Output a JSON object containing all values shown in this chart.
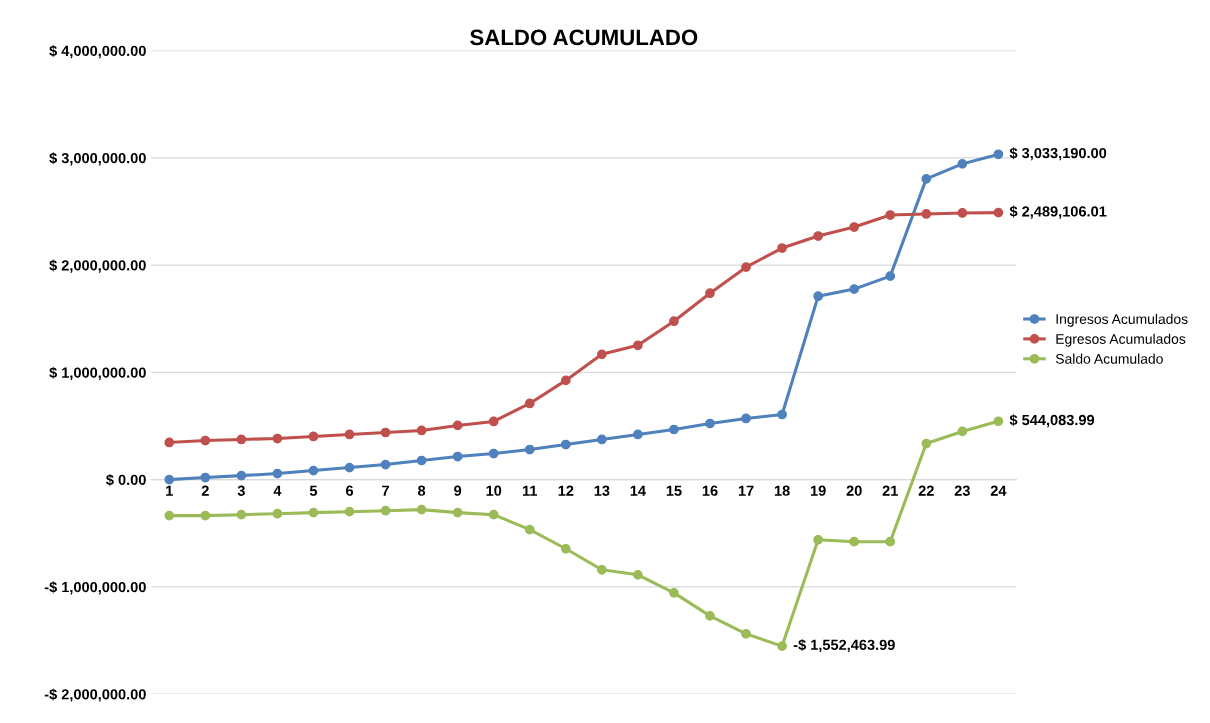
{
  "chart_data": {
    "type": "line",
    "title": "SALDO ACUMULADO",
    "categories": [
      "1",
      "2",
      "3",
      "4",
      "5",
      "6",
      "7",
      "8",
      "9",
      "10",
      "11",
      "12",
      "13",
      "14",
      "15",
      "16",
      "17",
      "18",
      "19",
      "20",
      "21",
      "22",
      "23",
      "24"
    ],
    "series": [
      {
        "name": "Ingresos Acumulados",
        "color": "#4f81bd",
        "values": [
          0,
          19000,
          37000,
          56000,
          84000,
          112000,
          140000,
          178000,
          215000,
          243000,
          280000,
          327000,
          374000,
          421000,
          467000,
          523000,
          570000,
          607000,
          1710000,
          1776000,
          1897000,
          2804000,
          2944000,
          3033190.0
        ],
        "value_labels": [
          null,
          null,
          null,
          null,
          null,
          null,
          null,
          null,
          null,
          null,
          null,
          null,
          null,
          null,
          null,
          null,
          null,
          null,
          null,
          null,
          null,
          null,
          null,
          "$ 3,033,190.00"
        ]
      },
      {
        "name": "Egresos Acumulados",
        "color": "#c0504d",
        "values": [
          346000,
          364000,
          374000,
          383000,
          402000,
          421000,
          439000,
          458000,
          505000,
          542000,
          710000,
          925000,
          1168000,
          1252000,
          1477000,
          1738000,
          1981000,
          2159000,
          2271000,
          2355000,
          2467000,
          2477000,
          2486000,
          2489106.01
        ],
        "value_labels": [
          null,
          null,
          null,
          null,
          null,
          null,
          null,
          null,
          null,
          null,
          null,
          null,
          null,
          null,
          null,
          null,
          null,
          null,
          null,
          null,
          null,
          null,
          null,
          "$ 2,489,106.01"
        ]
      },
      {
        "name": "Saldo Acumulado",
        "color": "#9bbb59",
        "values": [
          -336000,
          -336000,
          -327000,
          -318000,
          -308000,
          -299000,
          -290000,
          -280000,
          -308000,
          -327000,
          -467000,
          -645000,
          -841000,
          -888000,
          -1056000,
          -1271000,
          -1439000,
          -1552463.99,
          -561000,
          -579000,
          -579000,
          336000,
          449000,
          544083.99
        ],
        "value_labels": [
          null,
          null,
          null,
          null,
          null,
          null,
          null,
          null,
          null,
          null,
          null,
          null,
          null,
          null,
          null,
          null,
          null,
          "-$ 1,552,463.99",
          null,
          null,
          null,
          null,
          null,
          "$ 544,083.99"
        ]
      }
    ],
    "ylim": [
      -2000000,
      4000000
    ],
    "yticks": [
      {
        "value": -2000000,
        "label": "-$ 2,000,000.00"
      },
      {
        "value": -1000000,
        "label": "-$ 1,000,000.00"
      },
      {
        "value": 0,
        "label": "$ 0.00"
      },
      {
        "value": 1000000,
        "label": "$ 1,000,000.00"
      },
      {
        "value": 2000000,
        "label": "$ 2,000,000.00"
      },
      {
        "value": 3000000,
        "label": "$ 3,000,000.00"
      },
      {
        "value": 4000000,
        "label": "$ 4,000,000.00"
      }
    ],
    "grid": "y",
    "legend": "right",
    "marker": "circle",
    "line_style": "solid"
  }
}
